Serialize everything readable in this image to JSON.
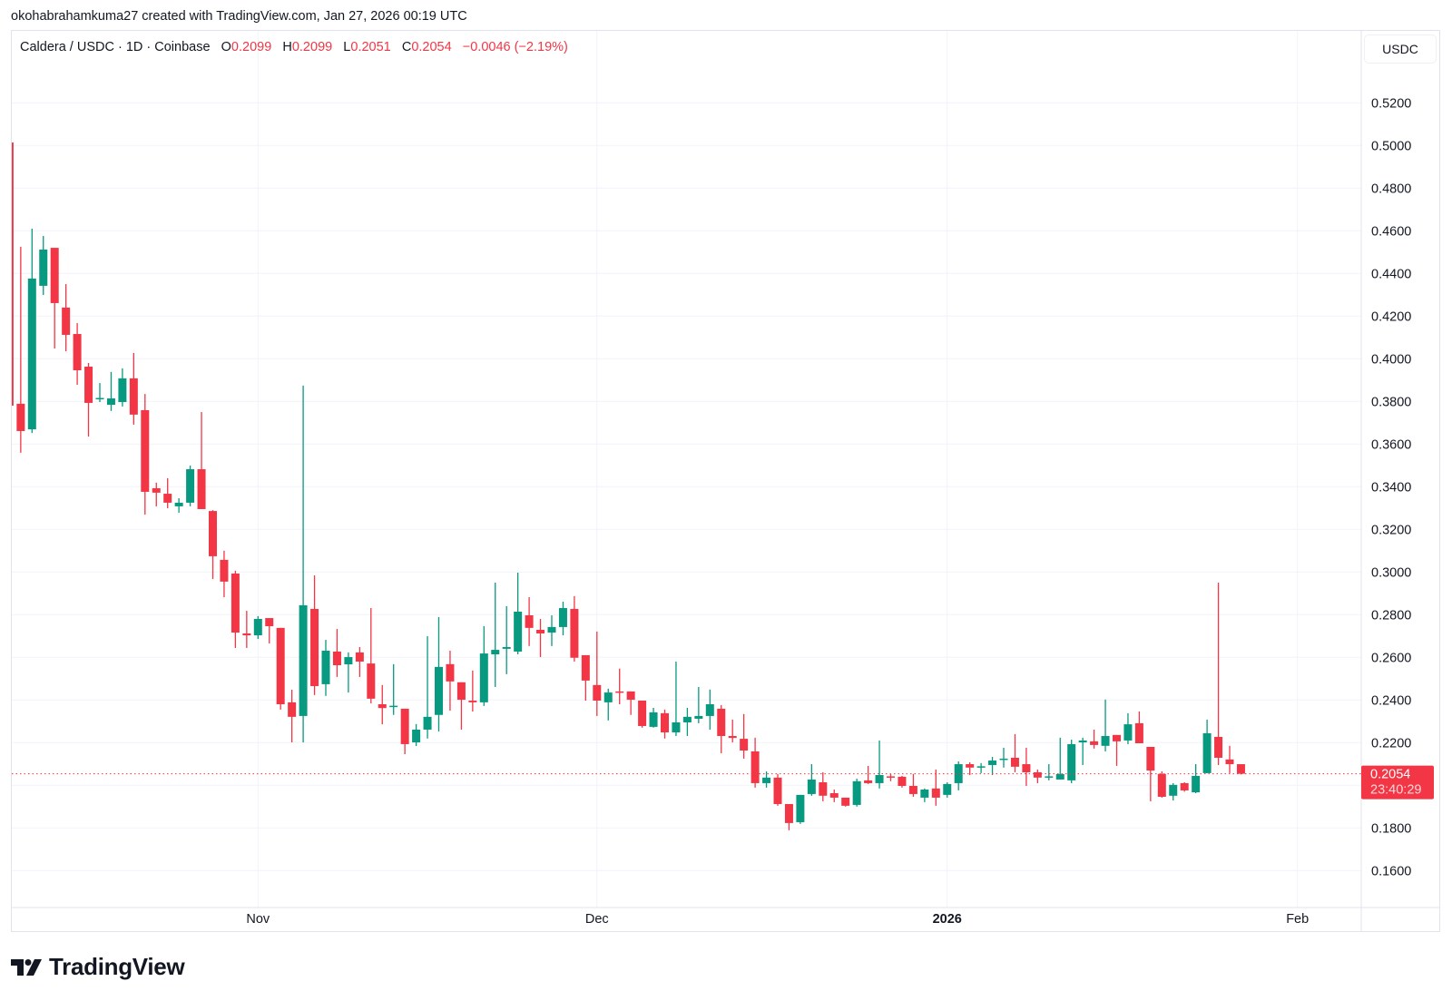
{
  "credit": "okohabrahamkuma27 created with TradingView.com, Jan 27, 2026 00:19 UTC",
  "legend": {
    "symbol": "Caldera / USDC · 1D · Coinbase",
    "o_label": "O",
    "o_value": "0.2099",
    "h_label": "H",
    "h_value": "0.2099",
    "l_label": "L",
    "l_value": "0.2051",
    "c_label": "C",
    "c_value": "0.2054",
    "change": "−0.0046 (−2.19%)"
  },
  "currency_button": "USDC",
  "last_price": {
    "value": "0.2054",
    "countdown": "23:40:29",
    "price": 0.2054
  },
  "brand": "TradingView",
  "colors": {
    "up": "#089981",
    "down": "#f23645",
    "grid": "#f0f3fa",
    "text": "#131722"
  },
  "chart_data": {
    "type": "candlestick",
    "title": "Caldera / USDC · 1D · Coinbase",
    "interval": "1D",
    "start_date": "2025-10-10",
    "end_date": "2026-01-27",
    "ylim": [
      0.16,
      0.52
    ],
    "y_ticks": [
      {
        "value": 0.52,
        "label": "0.5200"
      },
      {
        "value": 0.5,
        "label": "0.5000"
      },
      {
        "value": 0.48,
        "label": "0.4800"
      },
      {
        "value": 0.46,
        "label": "0.4600"
      },
      {
        "value": 0.44,
        "label": "0.4400"
      },
      {
        "value": 0.42,
        "label": "0.4200"
      },
      {
        "value": 0.4,
        "label": "0.4000"
      },
      {
        "value": 0.38,
        "label": "0.3800"
      },
      {
        "value": 0.36,
        "label": "0.3600"
      },
      {
        "value": 0.34,
        "label": "0.3400"
      },
      {
        "value": 0.32,
        "label": "0.3200"
      },
      {
        "value": 0.3,
        "label": "0.3000"
      },
      {
        "value": 0.28,
        "label": "0.2800"
      },
      {
        "value": 0.26,
        "label": "0.2600"
      },
      {
        "value": 0.24,
        "label": "0.2400"
      },
      {
        "value": 0.22,
        "label": "0.2200"
      },
      {
        "value": 0.18,
        "label": "0.1800"
      },
      {
        "value": 0.16,
        "label": "0.1600"
      }
    ],
    "x_ticks": [
      {
        "day_index": 22,
        "label": "Nov",
        "bold": false
      },
      {
        "day_index": 52,
        "label": "Dec",
        "bold": false
      },
      {
        "day_index": 83,
        "label": "2026",
        "bold": true
      },
      {
        "day_index": 114,
        "label": "Feb",
        "bold": false
      }
    ],
    "grid": true,
    "ohlc": [
      [
        0.5014,
        0.5014,
        0.378,
        0.378
      ],
      [
        0.3789,
        0.4525,
        0.3559,
        0.3661
      ],
      [
        0.3669,
        0.461,
        0.3652,
        0.4376
      ],
      [
        0.4342,
        0.4576,
        0.4299,
        0.4512
      ],
      [
        0.452,
        0.452,
        0.4048,
        0.4261
      ],
      [
        0.424,
        0.435,
        0.4035,
        0.4112
      ],
      [
        0.4116,
        0.4167,
        0.3878,
        0.3946
      ],
      [
        0.3963,
        0.398,
        0.3635,
        0.3793
      ],
      [
        0.3812,
        0.3886,
        0.3797,
        0.3816
      ],
      [
        0.3784,
        0.3938,
        0.3755,
        0.3814
      ],
      [
        0.3797,
        0.3955,
        0.3776,
        0.3908
      ],
      [
        0.3908,
        0.4027,
        0.3691,
        0.3738
      ],
      [
        0.3759,
        0.3835,
        0.3269,
        0.3376
      ],
      [
        0.3393,
        0.3419,
        0.3308,
        0.3372
      ],
      [
        0.3367,
        0.344,
        0.3299,
        0.3325
      ],
      [
        0.3308,
        0.3346,
        0.3278,
        0.3325
      ],
      [
        0.3325,
        0.3499,
        0.3308,
        0.3482
      ],
      [
        0.3482,
        0.375,
        0.3295,
        0.3295
      ],
      [
        0.3286,
        0.329,
        0.2967,
        0.3074
      ],
      [
        0.3057,
        0.31,
        0.2882,
        0.2955
      ],
      [
        0.2993,
        0.3006,
        0.2644,
        0.2716
      ],
      [
        0.2712,
        0.2818,
        0.2644,
        0.2703
      ],
      [
        0.2703,
        0.2793,
        0.2686,
        0.278
      ],
      [
        0.2784,
        0.2784,
        0.2665,
        0.2746
      ],
      [
        0.2738,
        0.2738,
        0.2355,
        0.238
      ],
      [
        0.2389,
        0.2448,
        0.2201,
        0.2321
      ],
      [
        0.2325,
        0.3874,
        0.2201,
        0.2844
      ],
      [
        0.2827,
        0.2984,
        0.2423,
        0.2465
      ],
      [
        0.2474,
        0.2682,
        0.2419,
        0.2631
      ],
      [
        0.2627,
        0.2733,
        0.2508,
        0.2563
      ],
      [
        0.2567,
        0.2623,
        0.2435,
        0.2601
      ],
      [
        0.2623,
        0.2648,
        0.2508,
        0.258
      ],
      [
        0.2571,
        0.2831,
        0.2384,
        0.2406
      ],
      [
        0.238,
        0.247,
        0.2286,
        0.2362
      ],
      [
        0.2372,
        0.2568,
        0.233,
        0.2373
      ],
      [
        0.2359,
        0.2359,
        0.2146,
        0.2193
      ],
      [
        0.2201,
        0.2287,
        0.2184,
        0.2261
      ],
      [
        0.2261,
        0.2699,
        0.2219,
        0.2321
      ],
      [
        0.233,
        0.2789,
        0.2252,
        0.2555
      ],
      [
        0.2568,
        0.2631,
        0.235,
        0.2487
      ],
      [
        0.2483,
        0.2483,
        0.2261,
        0.2401
      ],
      [
        0.2397,
        0.2538,
        0.2346,
        0.2389
      ],
      [
        0.2389,
        0.2746,
        0.2372,
        0.2618
      ],
      [
        0.2614,
        0.295,
        0.2461,
        0.2635
      ],
      [
        0.264,
        0.284,
        0.2521,
        0.2648
      ],
      [
        0.2627,
        0.2997,
        0.2614,
        0.2814
      ],
      [
        0.2797,
        0.2882,
        0.2653,
        0.2738
      ],
      [
        0.2729,
        0.278,
        0.2601,
        0.2712
      ],
      [
        0.2716,
        0.2797,
        0.2653,
        0.2742
      ],
      [
        0.2742,
        0.2861,
        0.2703,
        0.2831
      ],
      [
        0.2827,
        0.2887,
        0.258,
        0.2598
      ],
      [
        0.261,
        0.261,
        0.2397,
        0.2491
      ],
      [
        0.247,
        0.2721,
        0.2325,
        0.2397
      ],
      [
        0.2389,
        0.2453,
        0.2304,
        0.2435
      ],
      [
        0.244,
        0.2547,
        0.238,
        0.2437
      ],
      [
        0.244,
        0.244,
        0.233,
        0.2401
      ],
      [
        0.2397,
        0.2397,
        0.227,
        0.2278
      ],
      [
        0.2274,
        0.2363,
        0.227,
        0.2342
      ],
      [
        0.2338,
        0.2355,
        0.2219,
        0.2248
      ],
      [
        0.2248,
        0.258,
        0.2231,
        0.2295
      ],
      [
        0.2295,
        0.2363,
        0.2231,
        0.2321
      ],
      [
        0.2312,
        0.2461,
        0.2291,
        0.2325
      ],
      [
        0.2325,
        0.2449,
        0.2261,
        0.238
      ],
      [
        0.2359,
        0.2376,
        0.215,
        0.2231
      ],
      [
        0.2231,
        0.2308,
        0.2201,
        0.2222
      ],
      [
        0.2218,
        0.2334,
        0.2125,
        0.2163
      ],
      [
        0.2159,
        0.2223,
        0.1989,
        0.201
      ],
      [
        0.201,
        0.2065,
        0.1989,
        0.2036
      ],
      [
        0.2036,
        0.2053,
        0.1904,
        0.1912
      ],
      [
        0.1912,
        0.1912,
        0.1789,
        0.1823
      ],
      [
        0.1827,
        0.1955,
        0.1819,
        0.1955
      ],
      [
        0.1959,
        0.2099,
        0.1951,
        0.2027
      ],
      [
        0.2014,
        0.2061,
        0.1925,
        0.1951
      ],
      [
        0.1963,
        0.198,
        0.1921,
        0.1942
      ],
      [
        0.1942,
        0.1942,
        0.19,
        0.1904
      ],
      [
        0.1908,
        0.2031,
        0.19,
        0.2019
      ],
      [
        0.2023,
        0.2091,
        0.2006,
        0.201
      ],
      [
        0.201,
        0.221,
        0.1985,
        0.2048
      ],
      [
        0.2042,
        0.2053,
        0.2019,
        0.204
      ],
      [
        0.204,
        0.2044,
        0.1989,
        0.1997
      ],
      [
        0.1997,
        0.2053,
        0.1946,
        0.1959
      ],
      [
        0.1942,
        0.1985,
        0.1921,
        0.198
      ],
      [
        0.1985,
        0.2074,
        0.1904,
        0.1942
      ],
      [
        0.1955,
        0.2014,
        0.1942,
        0.2006
      ],
      [
        0.201,
        0.2112,
        0.1976,
        0.2099
      ],
      [
        0.2099,
        0.2108,
        0.2048,
        0.2083
      ],
      [
        0.2087,
        0.2104,
        0.2057,
        0.2089
      ],
      [
        0.2095,
        0.2133,
        0.2048,
        0.2116
      ],
      [
        0.2122,
        0.2176,
        0.2083,
        0.2125
      ],
      [
        0.2129,
        0.224,
        0.2061,
        0.2087
      ],
      [
        0.2099,
        0.2176,
        0.1997,
        0.2061
      ],
      [
        0.2061,
        0.2074,
        0.201,
        0.2036
      ],
      [
        0.204,
        0.2099,
        0.2023,
        0.2042
      ],
      [
        0.2027,
        0.2223,
        0.2027,
        0.2053
      ],
      [
        0.2023,
        0.2214,
        0.201,
        0.2193
      ],
      [
        0.2201,
        0.2223,
        0.2095,
        0.221
      ],
      [
        0.2206,
        0.2261,
        0.2172,
        0.2189
      ],
      [
        0.2185,
        0.2402,
        0.2159,
        0.2231
      ],
      [
        0.2236,
        0.2236,
        0.2091,
        0.2206
      ],
      [
        0.221,
        0.2338,
        0.2193,
        0.2286
      ],
      [
        0.2291,
        0.2346,
        0.2197,
        0.2197
      ],
      [
        0.218,
        0.218,
        0.1925,
        0.2069
      ],
      [
        0.2053,
        0.2065,
        0.1942,
        0.1946
      ],
      [
        0.1951,
        0.201,
        0.1929,
        0.2002
      ],
      [
        0.201,
        0.2014,
        0.197,
        0.1976
      ],
      [
        0.1967,
        0.2099,
        0.1963,
        0.2044
      ],
      [
        0.2057,
        0.2308,
        0.2057,
        0.2244
      ],
      [
        0.2227,
        0.295,
        0.2095,
        0.2129
      ],
      [
        0.2121,
        0.2185,
        0.2057,
        0.2099
      ],
      [
        0.2099,
        0.2099,
        0.2051,
        0.2054
      ]
    ]
  }
}
